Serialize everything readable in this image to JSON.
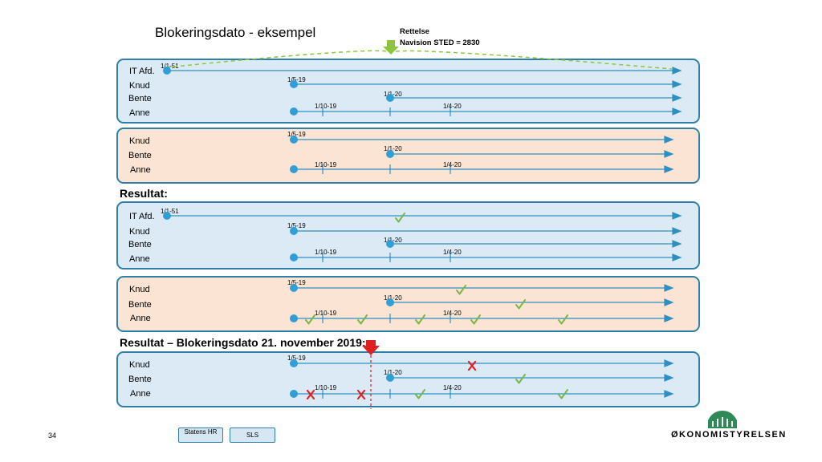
{
  "title": "Blokeringsdato - eksempel",
  "note": {
    "line1": "Rettelse",
    "line2": "Navision STED = 2830"
  },
  "headings": {
    "result": "Resultat:",
    "result_block": "Resultat – Blokeringsdato 21. november 2019:"
  },
  "panels": {
    "p1": {
      "names": [
        "IT Afd.",
        "Knud",
        "Bente",
        "Anne"
      ],
      "dates": [
        "1/1-51",
        "1/5-19",
        "1/1-20",
        "1/10-19",
        "1/4-20"
      ]
    },
    "p2": {
      "names": [
        "Knud",
        "Bente",
        "Anne"
      ],
      "dates": [
        "1/5-19",
        "1/1-20",
        "1/10-19",
        "1/4-20"
      ]
    },
    "p3": {
      "names": [
        "IT Afd.",
        "Knud",
        "Bente",
        "Anne"
      ],
      "dates": [
        "1/1-51",
        "1/5-19",
        "1/1-20",
        "1/10-19",
        "1/4-20"
      ]
    },
    "p4": {
      "names": [
        "Knud",
        "Bente",
        "Anne"
      ],
      "dates": [
        "1/5-19",
        "1/1-20",
        "1/10-19",
        "1/4-20"
      ]
    },
    "p5": {
      "names": [
        "Knud",
        "Bente",
        "Anne"
      ],
      "dates": [
        "1/5-19",
        "1/1-20",
        "1/10-19",
        "1/4-20"
      ]
    }
  },
  "footer": {
    "page_number": "34",
    "button1": "Statens HR",
    "button2": "SLS",
    "logo": "ØKONOMISTYRELSEN"
  },
  "colors": {
    "line": "#2f8fc2",
    "dot": "#2f9fd6",
    "check": "#7ab648",
    "cross": "#e02020",
    "arrow_green": "#8cc63f",
    "marker_red": "#e02020"
  }
}
